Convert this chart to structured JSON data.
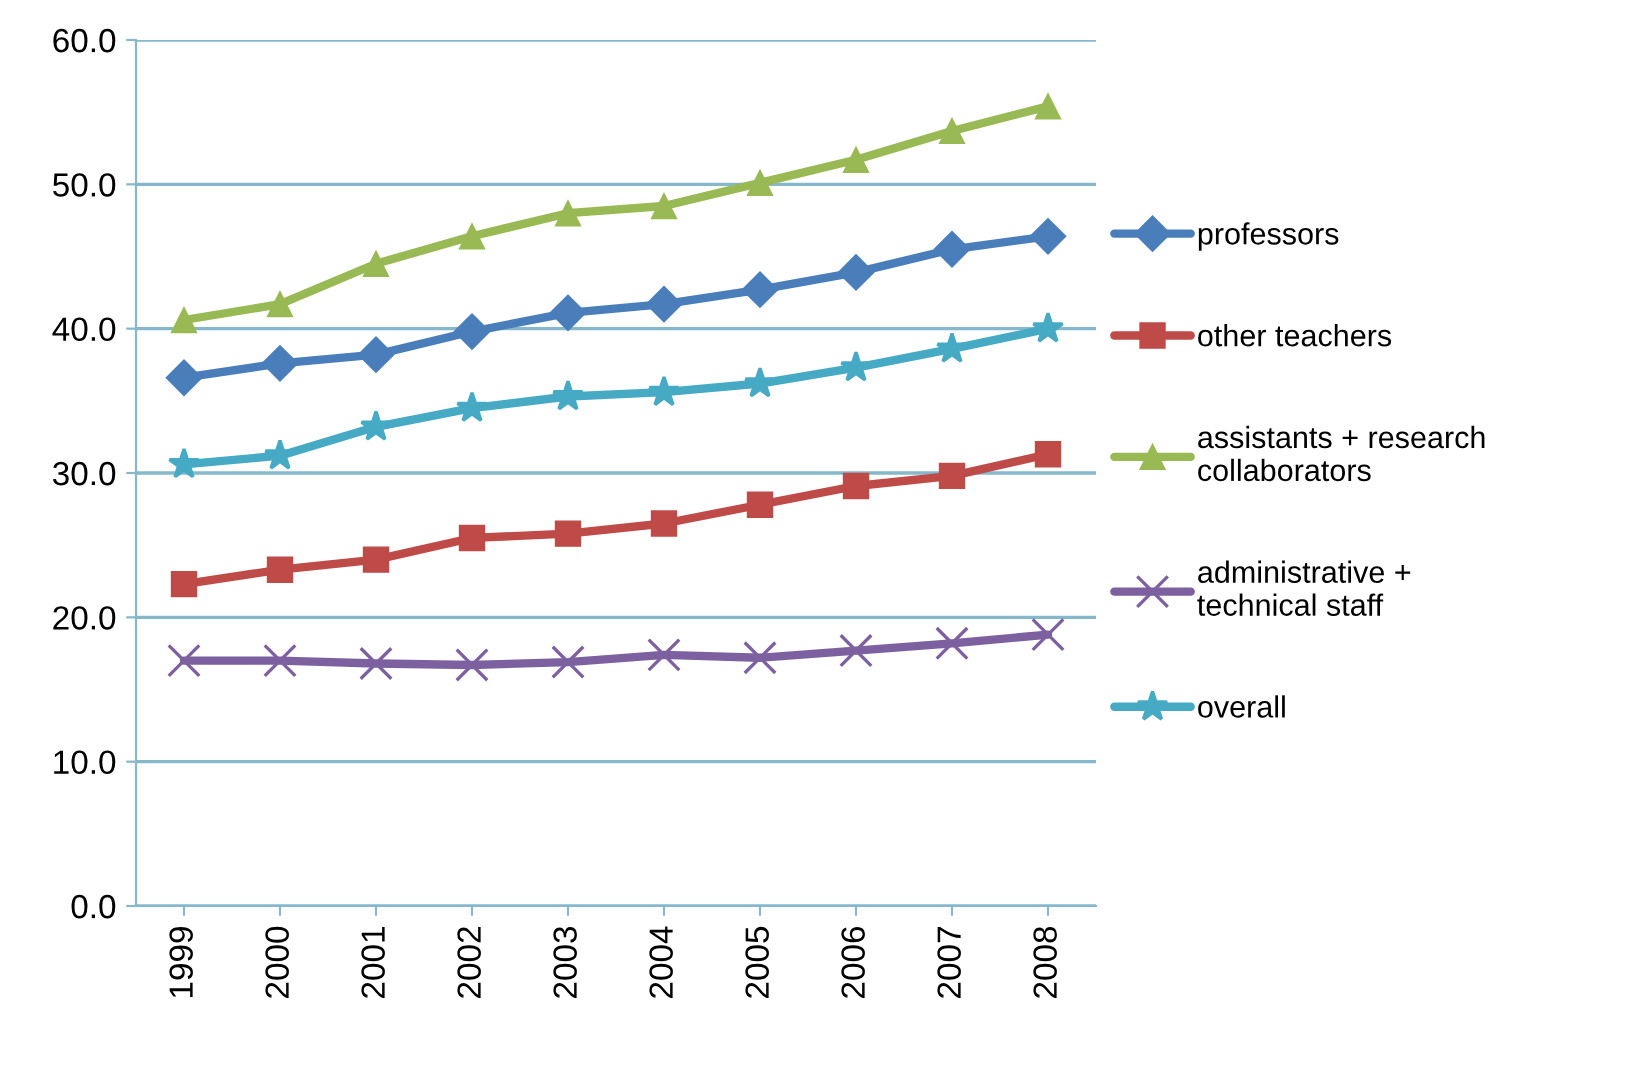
{
  "chart_data": {
    "type": "line",
    "categories": [
      "1999",
      "2000",
      "2001",
      "2002",
      "2003",
      "2004",
      "2005",
      "2006",
      "2007",
      "2008"
    ],
    "series": [
      {
        "name": "professors",
        "color": "#4a7ebb",
        "marker": "diamond",
        "values": [
          36.6,
          37.6,
          38.2,
          39.8,
          41.1,
          41.7,
          42.7,
          43.9,
          45.5,
          46.4
        ]
      },
      {
        "name": "other teachers",
        "color": "#be4b48",
        "marker": "square",
        "values": [
          22.3,
          23.3,
          24.0,
          25.5,
          25.8,
          26.5,
          27.8,
          29.1,
          29.8,
          31.3
        ]
      },
      {
        "name": "assistants + research collaborators",
        "color": "#98b954",
        "marker": "triangle",
        "values": [
          40.6,
          41.7,
          44.5,
          46.4,
          48.0,
          48.5,
          50.1,
          51.7,
          53.7,
          55.4
        ]
      },
      {
        "name": "administrative + technical staff",
        "color": "#7d60a0",
        "marker": "cross",
        "values": [
          17.0,
          17.0,
          16.8,
          16.7,
          16.9,
          17.4,
          17.2,
          17.7,
          18.2,
          18.8
        ]
      },
      {
        "name": "overall",
        "color": "#46aac5",
        "marker": "star",
        "values": [
          30.6,
          31.2,
          33.2,
          34.5,
          35.3,
          35.6,
          36.2,
          37.3,
          38.6,
          40.0
        ]
      }
    ],
    "ylim": [
      0,
      60
    ],
    "yticks": [
      {
        "value": 0,
        "label": "0.0"
      },
      {
        "value": 10,
        "label": "10.0"
      },
      {
        "value": 20,
        "label": "20.0"
      },
      {
        "value": 30,
        "label": "30.0"
      },
      {
        "value": 40,
        "label": "40.0"
      },
      {
        "value": 50,
        "label": "50.0"
      },
      {
        "value": 60,
        "label": "60.0"
      }
    ],
    "grid": "y",
    "legend": "right",
    "line_style": "solid"
  }
}
